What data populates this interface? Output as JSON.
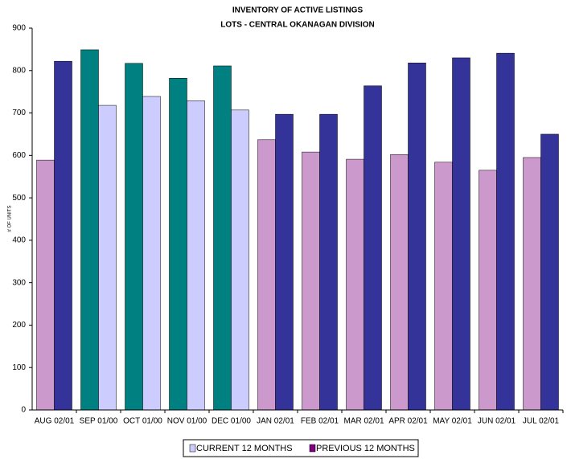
{
  "chart_data": {
    "type": "bar",
    "title": "INVENTORY OF ACTIVE LISTINGS",
    "subtitle": "LOTS - CENTRAL OKANAGAN DIVISION",
    "y_label": "# OF UNITS",
    "categories": [
      "AUG 02/01",
      "SEP 01/00",
      "OCT 01/00",
      "NOV 01/00",
      "DEC 01/00",
      "JAN 02/01",
      "FEB 02/01",
      "MAR 02/01",
      "APR 02/01",
      "MAY 02/01",
      "JUN 02/01",
      "JUL 02/01"
    ],
    "series": [
      {
        "name": "CURRENT 12 MONTHS",
        "color": "#ccccff",
        "colors": [
          "#cc99cc",
          "#008080",
          "#008080",
          "#008080",
          "#008080",
          "#cc99cc",
          "#cc99cc",
          "#cc99cc",
          "#cc99cc",
          "#cc99cc",
          "#cc99cc",
          "#cc99cc"
        ],
        "values": [
          589,
          849,
          817,
          782,
          811,
          637,
          608,
          591,
          602,
          584,
          565,
          595
        ]
      },
      {
        "name": "PREVIOUS 12 MONTHS",
        "color": "#800080",
        "colors": [
          "#333399",
          "#ccccff",
          "#ccccff",
          "#ccccff",
          "#ccccff",
          "#333399",
          "#333399",
          "#333399",
          "#333399",
          "#333399",
          "#333399",
          "#333399"
        ],
        "values": [
          822,
          718,
          739,
          729,
          707,
          697,
          697,
          764,
          818,
          830,
          841,
          650
        ]
      }
    ],
    "ylim": [
      0,
      900
    ],
    "yticks": [
      0,
      100,
      200,
      300,
      400,
      500,
      600,
      700,
      800,
      900
    ],
    "grid": false,
    "legend": "bottom"
  }
}
